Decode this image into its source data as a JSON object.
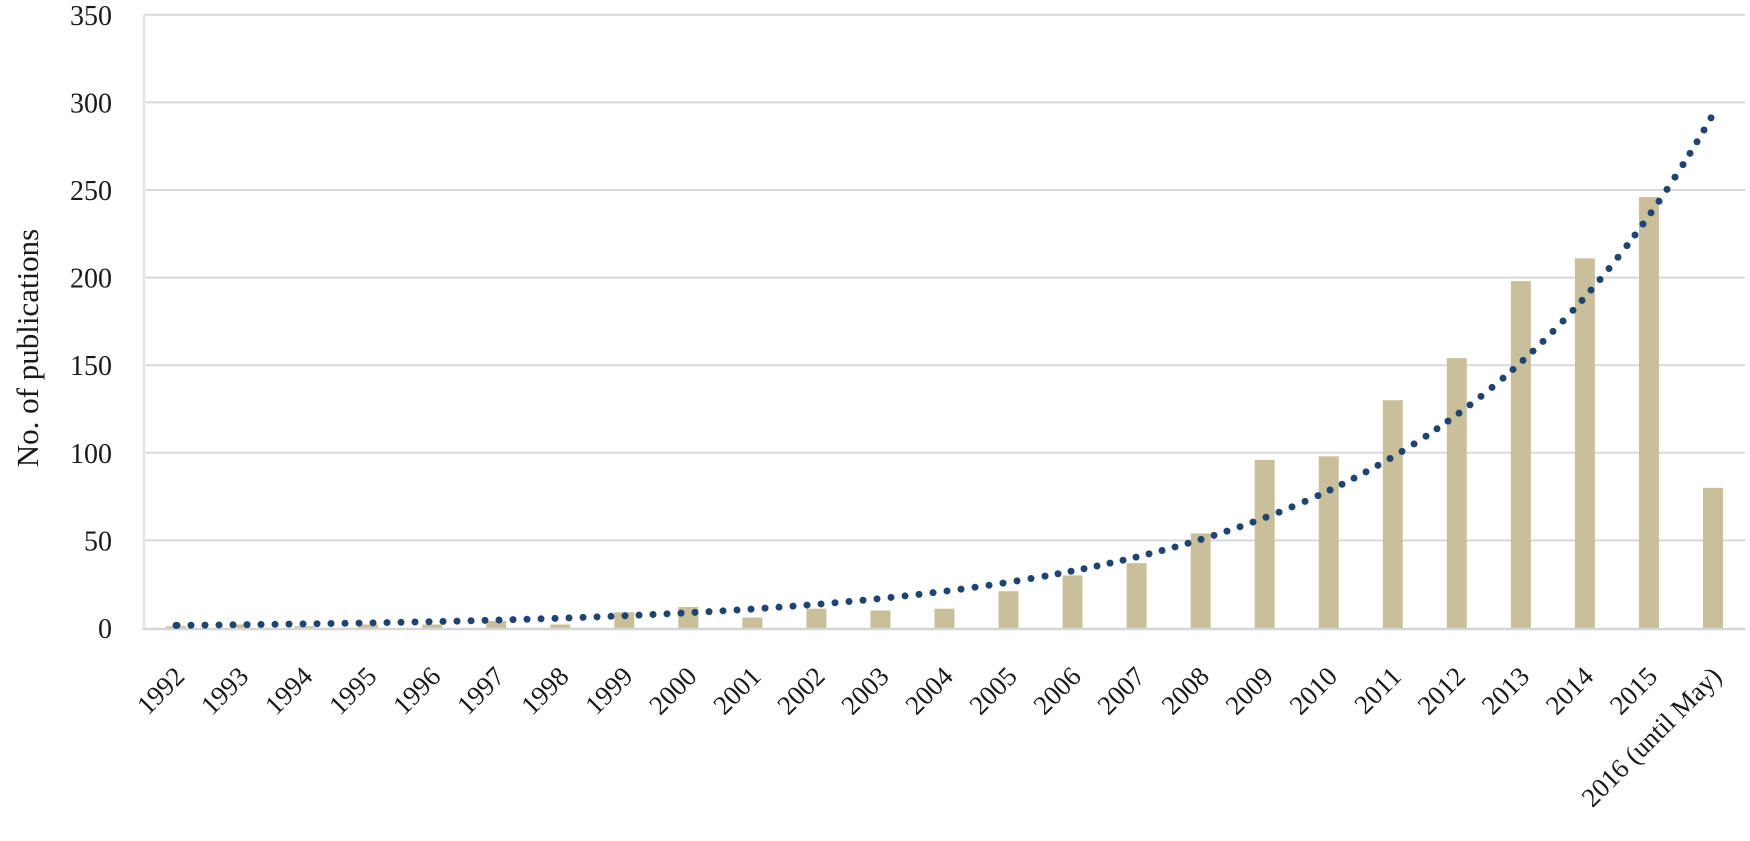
{
  "chart_data": {
    "type": "bar",
    "title": "",
    "xlabel": "",
    "ylabel": "No. of publications",
    "categories": [
      "1992",
      "1993",
      "1994",
      "1995",
      "1996",
      "1997",
      "1998",
      "1999",
      "2000",
      "2001",
      "2002",
      "2003",
      "2004",
      "2005",
      "2006",
      "2007",
      "2008",
      "2009",
      "2010",
      "2011",
      "2012",
      "2013",
      "2014",
      "2015",
      "2016 (until May)"
    ],
    "values": [
      1,
      2,
      1,
      2,
      2,
      4,
      2,
      9,
      12,
      6,
      11,
      10,
      11,
      21,
      30,
      37,
      54,
      96,
      98,
      130,
      154,
      198,
      211,
      246,
      80
    ],
    "ylim": [
      0,
      350
    ],
    "yticks": [
      0,
      50,
      100,
      150,
      200,
      250,
      300,
      350
    ],
    "grid": "horizontal",
    "legend": "none",
    "bar_color": "#C9C09B",
    "trendline": {
      "type": "exponential",
      "style": "dotted",
      "color": "#1F4470",
      "a": 1.5,
      "b": 0.2198,
      "start_value": 1.5,
      "end_value": 294
    },
    "colors": {
      "gridline": "#D9D9D9",
      "baseline": "#D6D6D6",
      "left_axis_line": "#EAE9DF",
      "text": "#1A1A1A",
      "background": "#FFFFFF"
    }
  }
}
